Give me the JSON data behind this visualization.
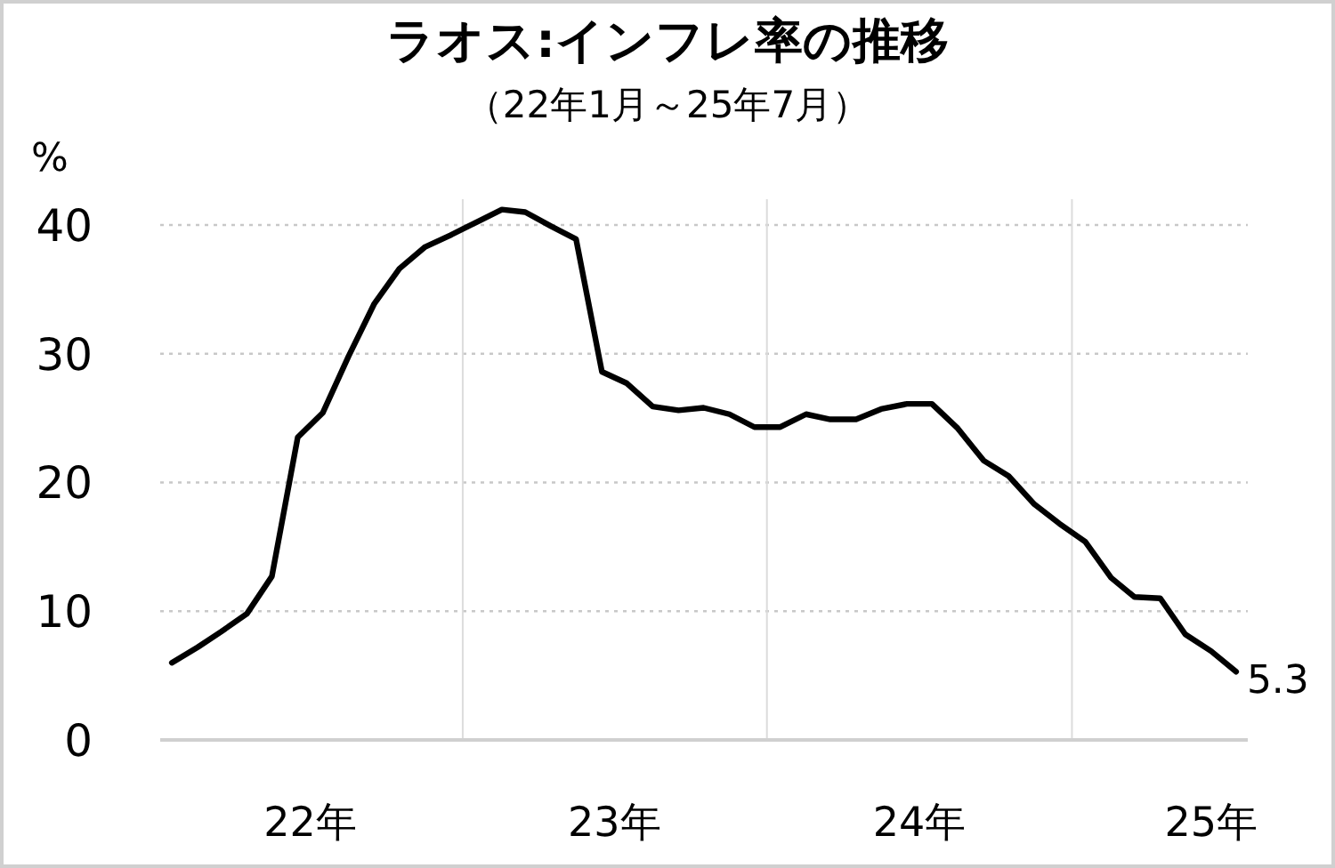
{
  "chart_data": {
    "type": "line",
    "title": "ラオス:インフレ率の推移",
    "subtitle": "（22年1月～25年7月）",
    "ylabel": "%",
    "x": [
      "2022-01",
      "2022-02",
      "2022-03",
      "2022-04",
      "2022-05",
      "2022-06",
      "2022-07",
      "2022-08",
      "2022-09",
      "2022-10",
      "2022-11",
      "2022-12",
      "2023-01",
      "2023-02",
      "2023-03",
      "2023-04",
      "2023-05",
      "2023-06",
      "2023-07",
      "2023-08",
      "2023-09",
      "2023-10",
      "2023-11",
      "2023-12",
      "2024-01",
      "2024-02",
      "2024-03",
      "2024-04",
      "2024-05",
      "2024-06",
      "2024-07",
      "2024-08",
      "2024-09",
      "2024-10",
      "2024-11",
      "2024-12",
      "2025-01",
      "2025-02",
      "2025-03",
      "2025-04",
      "2025-05",
      "2025-06",
      "2025-07"
    ],
    "series": [
      {
        "color": "#000000",
        "values": [
          6.0,
          7.2,
          8.4,
          9.8,
          12.7,
          23.5,
          25.4,
          29.8,
          33.9,
          36.6,
          38.3,
          39.2,
          40.2,
          41.2,
          41.0,
          39.9,
          38.9,
          28.6,
          27.7,
          25.9,
          25.6,
          25.8,
          25.3,
          24.3,
          24.3,
          25.3,
          24.9,
          24.9,
          25.7,
          26.1,
          26.1,
          24.2,
          21.7,
          20.5,
          18.3,
          16.8,
          15.4,
          12.6,
          11.1,
          11.0,
          8.2,
          6.9,
          5.3
        ],
        "value_labels": [
          null,
          null,
          null,
          null,
          null,
          null,
          null,
          null,
          null,
          null,
          null,
          null,
          null,
          null,
          null,
          null,
          null,
          null,
          null,
          null,
          null,
          null,
          null,
          null,
          null,
          null,
          null,
          null,
          null,
          null,
          null,
          null,
          null,
          null,
          null,
          null,
          null,
          null,
          null,
          null,
          null,
          null,
          "5.3"
        ]
      }
    ],
    "xlim": [
      "2021-12-18",
      "2025-07-15"
    ],
    "xticks": [
      {
        "value": "2022-06-16",
        "label": "22年"
      },
      {
        "value": "2022-12-16",
        "label": null
      },
      {
        "value": "2023-06-16",
        "label": "23年"
      },
      {
        "value": "2023-12-16",
        "label": null
      },
      {
        "value": "2024-06-16",
        "label": "24年"
      },
      {
        "value": "2024-12-16",
        "label": null
      },
      {
        "value": "2025-06-01",
        "label": "25年"
      }
    ],
    "ylim": [
      0,
      42
    ],
    "yticks": [
      0,
      10,
      20,
      30,
      40
    ],
    "grid": true,
    "line_style": "solid",
    "marker": "none"
  }
}
